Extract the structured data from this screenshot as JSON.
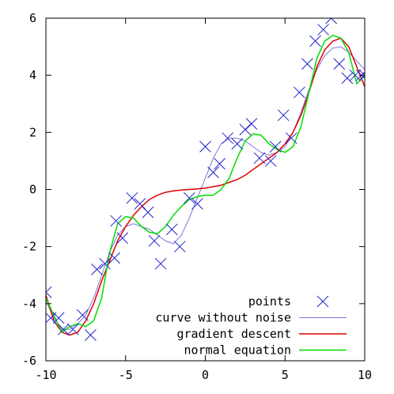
{
  "chart_data": {
    "type": "line",
    "title": "",
    "xlabel": "",
    "ylabel": "",
    "xlim": [
      -10,
      10
    ],
    "ylim": [
      -6,
      6
    ],
    "xticks": [
      -10,
      -5,
      0,
      5,
      10
    ],
    "yticks": [
      -6,
      -4,
      -2,
      0,
      2,
      4,
      6
    ],
    "xtick_labels": [
      "-10",
      "-5",
      "0",
      "5",
      "10"
    ],
    "ytick_labels": [
      "-6",
      "-4",
      "-2",
      "0",
      "2",
      "4",
      "6"
    ],
    "grid": false,
    "legend_position": "bottom-right",
    "series": [
      {
        "name": "points",
        "kind": "scatter",
        "marker": "x",
        "color": "#2222cc",
        "x": [
          -10,
          -9.7,
          -9.2,
          -8.9,
          -8.3,
          -7.7,
          -7.2,
          -6.8,
          -6.3,
          -5.7,
          -5.6,
          -5.2,
          -4.6,
          -4.1,
          -3.6,
          -3.2,
          -2.8,
          -2.1,
          -1.6,
          -1.0,
          -0.5,
          0,
          0.5,
          0.9,
          1.4,
          2.0,
          2.5,
          2.9,
          3.4,
          4.1,
          4.4,
          4.9,
          5.4,
          5.9,
          6.4,
          6.9,
          7.4,
          7.9,
          8.4,
          8.9,
          9.4,
          9.8,
          10
        ],
        "y": [
          -3.6,
          -4.5,
          -4.5,
          -4.9,
          -4.9,
          -4.4,
          -5.1,
          -2.8,
          -2.6,
          -2.4,
          -1.1,
          -1.7,
          -0.3,
          -0.5,
          -0.8,
          -1.8,
          -2.6,
          -1.4,
          -2.0,
          -0.3,
          -0.5,
          1.5,
          0.6,
          0.9,
          1.8,
          1.6,
          2.1,
          2.3,
          1.1,
          1.0,
          1.5,
          2.6,
          1.8,
          3.4,
          4.4,
          5.2,
          5.6,
          6.0,
          4.4,
          3.9,
          4.0,
          4.0,
          4.0
        ]
      },
      {
        "name": "curve without noise",
        "kind": "line",
        "color": "#7777dd",
        "x": [
          -10,
          -9.5,
          -9,
          -8.5,
          -8,
          -7.5,
          -7,
          -6.5,
          -6,
          -5.5,
          -5,
          -4.5,
          -4,
          -3.5,
          -3,
          -2.5,
          -2,
          -1.5,
          -1,
          -0.5,
          0,
          0.5,
          1,
          1.5,
          2,
          2.5,
          3,
          3.5,
          4,
          4.5,
          5,
          5.5,
          6,
          6.5,
          7,
          7.5,
          8,
          8.5,
          9,
          9.5,
          10
        ],
        "y": [
          -3.9,
          -4.5,
          -4.9,
          -4.9,
          -4.7,
          -4.4,
          -3.8,
          -3.0,
          -2.2,
          -1.6,
          -1.3,
          -1.2,
          -1.3,
          -1.4,
          -1.6,
          -1.8,
          -1.9,
          -1.6,
          -1.0,
          -0.3,
          0.4,
          1.1,
          1.6,
          1.8,
          1.8,
          1.7,
          1.5,
          1.3,
          1.2,
          1.3,
          1.5,
          2.0,
          2.7,
          3.5,
          4.2,
          4.7,
          4.95,
          5.0,
          4.8,
          4.5,
          4.2
        ]
      },
      {
        "name": "gradient descent",
        "kind": "line",
        "color": "#dd0000",
        "x": [
          -10,
          -9.5,
          -9,
          -8.5,
          -8,
          -7.5,
          -7,
          -6.5,
          -6,
          -5.5,
          -5,
          -4.5,
          -4,
          -3.5,
          -3,
          -2.5,
          -2,
          -1.5,
          -1,
          -0.5,
          0,
          0.5,
          1,
          1.5,
          2,
          2.5,
          3,
          3.5,
          4,
          4.5,
          5,
          5.5,
          6,
          6.5,
          7,
          7.5,
          8,
          8.5,
          9,
          9.5,
          10
        ],
        "y": [
          -3.7,
          -4.6,
          -5.0,
          -5.1,
          -5.0,
          -4.6,
          -4.0,
          -3.2,
          -2.5,
          -1.8,
          -1.3,
          -0.9,
          -0.6,
          -0.35,
          -0.2,
          -0.1,
          -0.05,
          -0.02,
          0,
          0.02,
          0.05,
          0.1,
          0.15,
          0.25,
          0.35,
          0.5,
          0.7,
          0.9,
          1.1,
          1.3,
          1.6,
          2.0,
          2.6,
          3.4,
          4.3,
          4.9,
          5.2,
          5.3,
          5.0,
          4.3,
          3.6
        ]
      },
      {
        "name": "normal equation",
        "kind": "line",
        "color": "#00dd00",
        "x": [
          -10,
          -9.5,
          -9,
          -8.5,
          -8,
          -7.5,
          -7,
          -6.5,
          -6,
          -5.5,
          -5,
          -4.5,
          -4,
          -3.5,
          -3,
          -2.5,
          -2,
          -1.5,
          -1,
          -0.5,
          0,
          0.5,
          1,
          1.5,
          2,
          2.5,
          3,
          3.5,
          4,
          4.5,
          5,
          5.5,
          6,
          6.5,
          7,
          7.5,
          8,
          8.5,
          9,
          9.5,
          10
        ],
        "y": [
          -3.8,
          -4.4,
          -5.0,
          -4.8,
          -4.7,
          -4.8,
          -4.6,
          -3.8,
          -2.2,
          -1.2,
          -0.95,
          -1.0,
          -1.3,
          -1.5,
          -1.55,
          -1.3,
          -0.9,
          -0.6,
          -0.35,
          -0.25,
          -0.2,
          -0.2,
          0.0,
          0.4,
          1.1,
          1.7,
          1.95,
          1.9,
          1.6,
          1.4,
          1.3,
          1.5,
          2.2,
          3.4,
          4.6,
          5.2,
          5.4,
          5.3,
          4.8,
          3.7,
          4.0
        ]
      }
    ]
  }
}
